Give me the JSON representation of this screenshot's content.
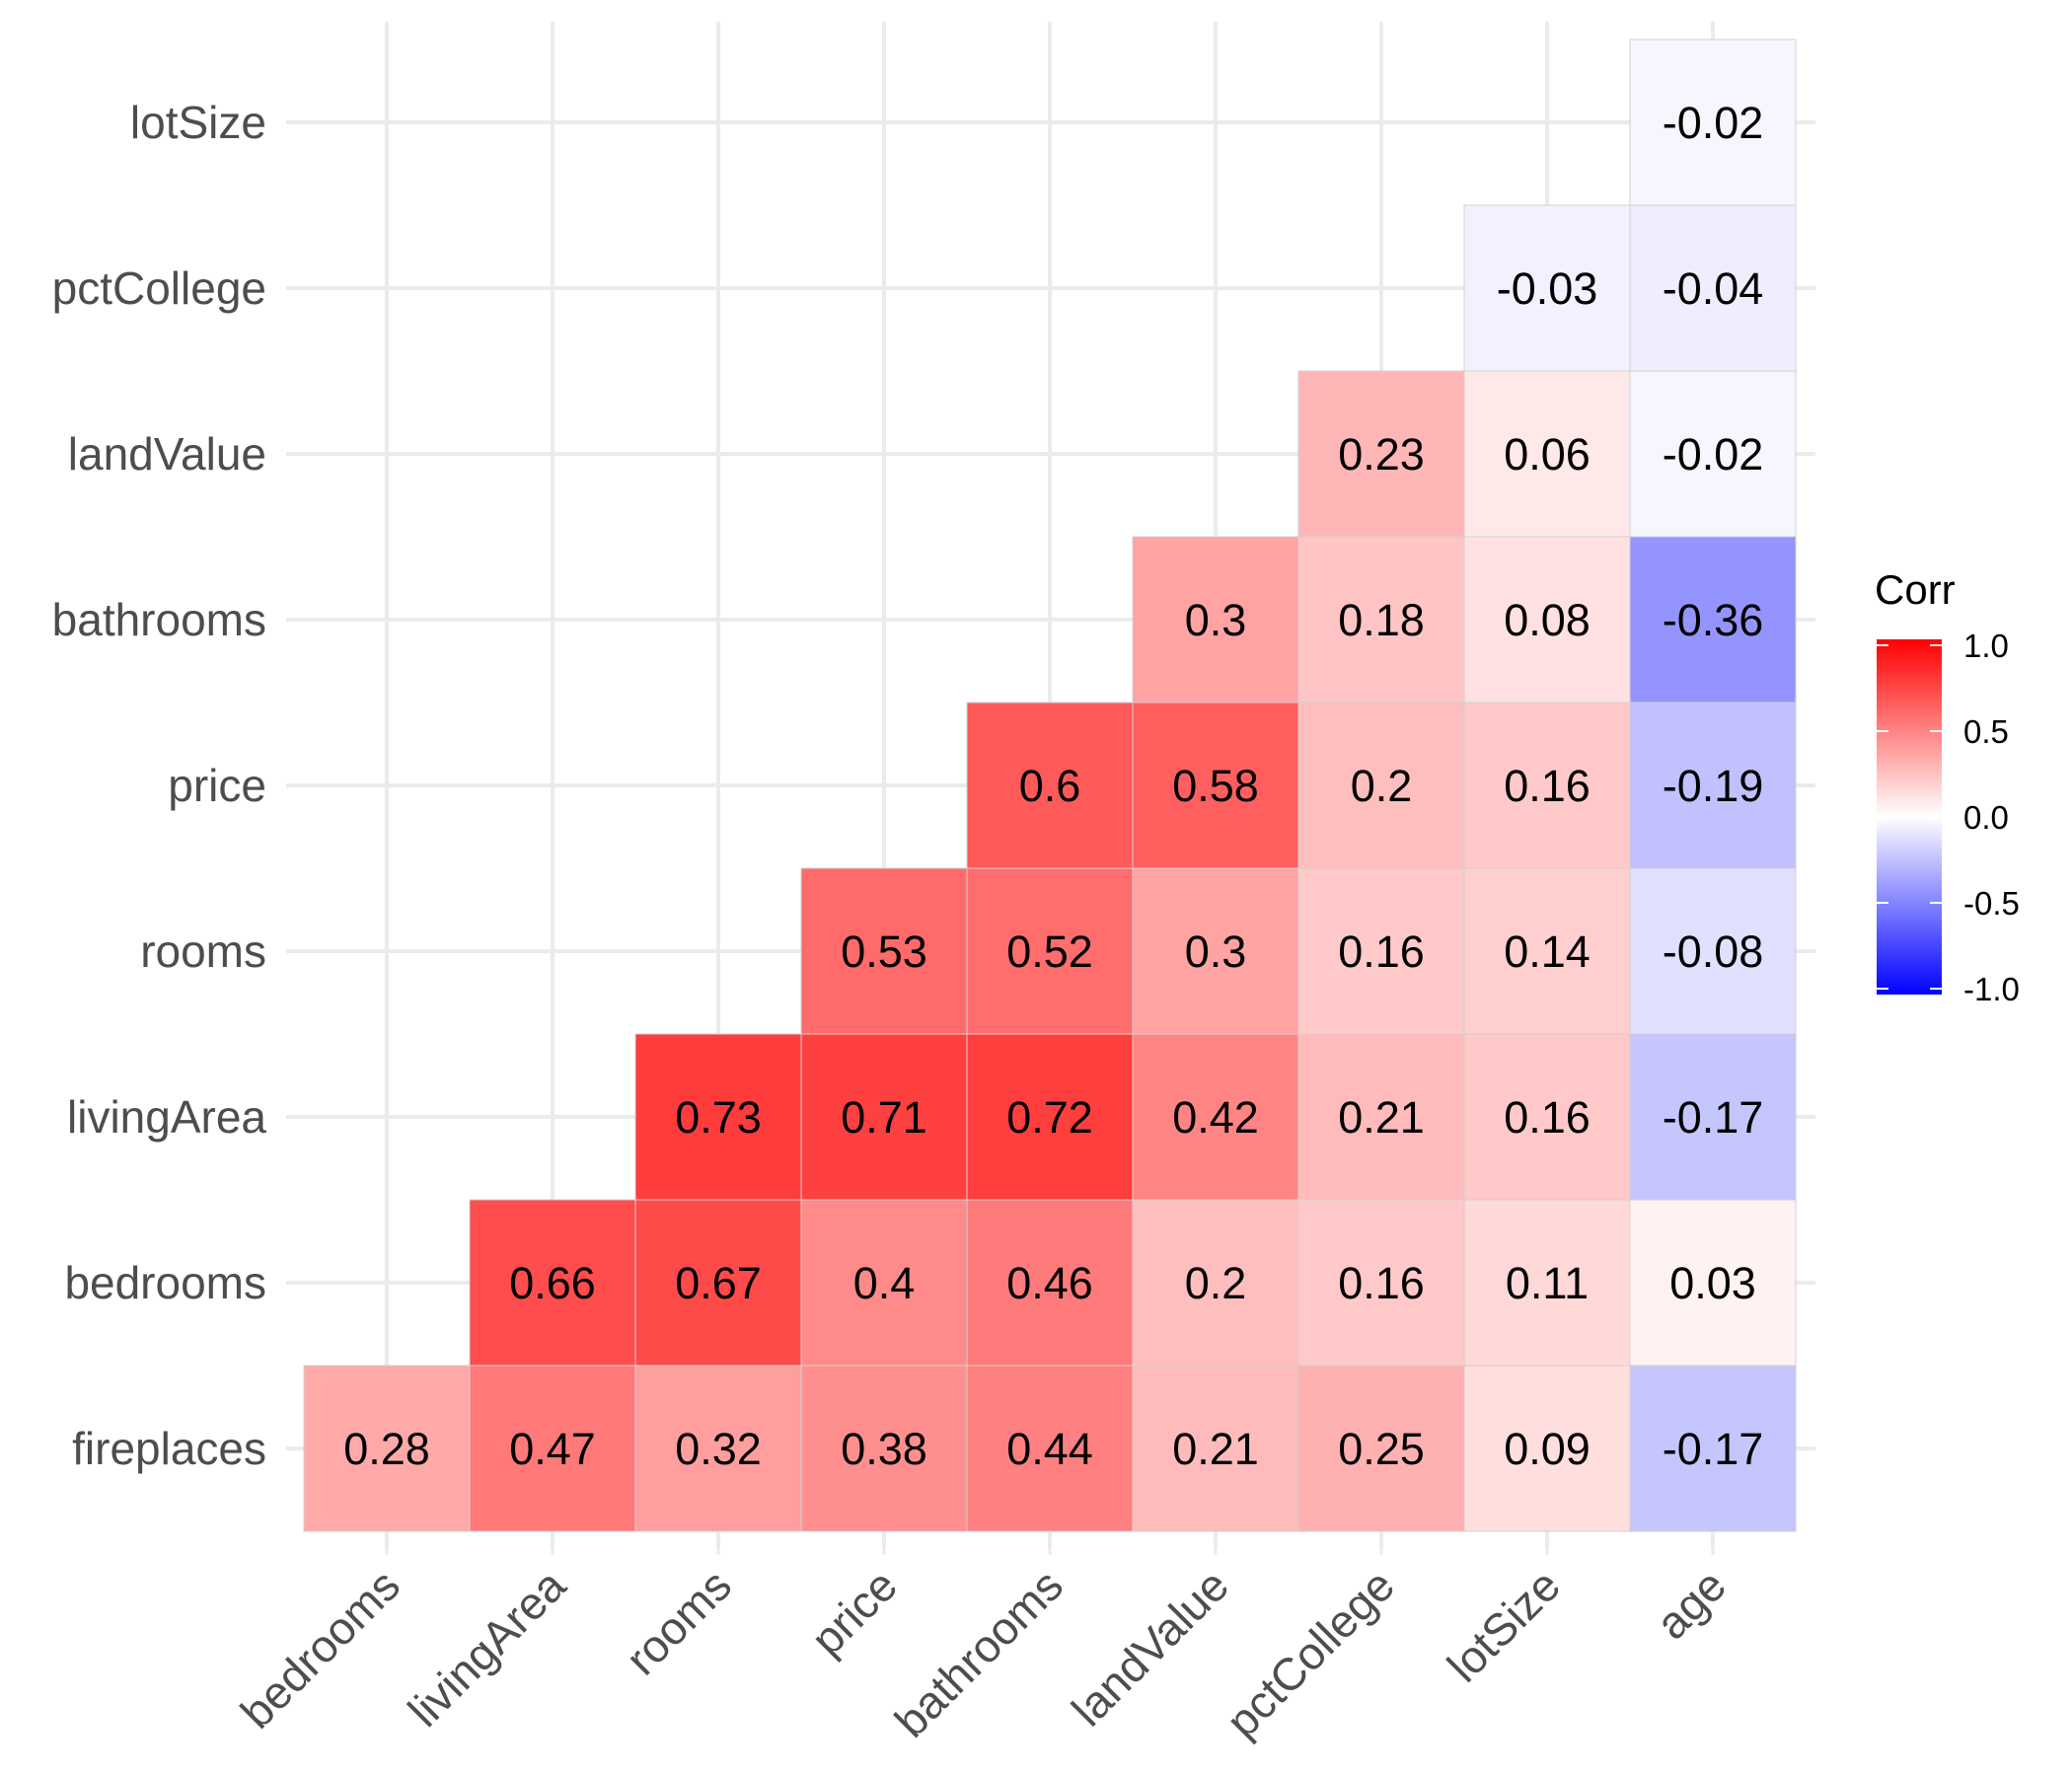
{
  "chart_data": {
    "type": "heatmap",
    "title": "",
    "xlabel": "",
    "ylabel": "",
    "x_categories": [
      "bedrooms",
      "livingArea",
      "rooms",
      "price",
      "bathrooms",
      "landValue",
      "pctCollege",
      "lotSize",
      "age"
    ],
    "y_categories": [
      "fireplaces",
      "bedrooms",
      "livingArea",
      "rooms",
      "price",
      "bathrooms",
      "landValue",
      "pctCollege",
      "lotSize"
    ],
    "cells": [
      {
        "y": "fireplaces",
        "x": "bedrooms",
        "value": 0.28,
        "label": "0.28"
      },
      {
        "y": "fireplaces",
        "x": "livingArea",
        "value": 0.47,
        "label": "0.47"
      },
      {
        "y": "fireplaces",
        "x": "rooms",
        "value": 0.32,
        "label": "0.32"
      },
      {
        "y": "fireplaces",
        "x": "price",
        "value": 0.38,
        "label": "0.38"
      },
      {
        "y": "fireplaces",
        "x": "bathrooms",
        "value": 0.44,
        "label": "0.44"
      },
      {
        "y": "fireplaces",
        "x": "landValue",
        "value": 0.21,
        "label": "0.21"
      },
      {
        "y": "fireplaces",
        "x": "pctCollege",
        "value": 0.25,
        "label": "0.25"
      },
      {
        "y": "fireplaces",
        "x": "lotSize",
        "value": 0.09,
        "label": "0.09"
      },
      {
        "y": "fireplaces",
        "x": "age",
        "value": -0.17,
        "label": "-0.17"
      },
      {
        "y": "bedrooms",
        "x": "livingArea",
        "value": 0.66,
        "label": "0.66"
      },
      {
        "y": "bedrooms",
        "x": "rooms",
        "value": 0.67,
        "label": "0.67"
      },
      {
        "y": "bedrooms",
        "x": "price",
        "value": 0.4,
        "label": "0.4"
      },
      {
        "y": "bedrooms",
        "x": "bathrooms",
        "value": 0.46,
        "label": "0.46"
      },
      {
        "y": "bedrooms",
        "x": "landValue",
        "value": 0.2,
        "label": "0.2"
      },
      {
        "y": "bedrooms",
        "x": "pctCollege",
        "value": 0.16,
        "label": "0.16"
      },
      {
        "y": "bedrooms",
        "x": "lotSize",
        "value": 0.11,
        "label": "0.11"
      },
      {
        "y": "bedrooms",
        "x": "age",
        "value": 0.03,
        "label": "0.03"
      },
      {
        "y": "livingArea",
        "x": "rooms",
        "value": 0.73,
        "label": "0.73"
      },
      {
        "y": "livingArea",
        "x": "price",
        "value": 0.71,
        "label": "0.71"
      },
      {
        "y": "livingArea",
        "x": "bathrooms",
        "value": 0.72,
        "label": "0.72"
      },
      {
        "y": "livingArea",
        "x": "landValue",
        "value": 0.42,
        "label": "0.42"
      },
      {
        "y": "livingArea",
        "x": "pctCollege",
        "value": 0.21,
        "label": "0.21"
      },
      {
        "y": "livingArea",
        "x": "lotSize",
        "value": 0.16,
        "label": "0.16"
      },
      {
        "y": "livingArea",
        "x": "age",
        "value": -0.17,
        "label": "-0.17"
      },
      {
        "y": "rooms",
        "x": "price",
        "value": 0.53,
        "label": "0.53"
      },
      {
        "y": "rooms",
        "x": "bathrooms",
        "value": 0.52,
        "label": "0.52"
      },
      {
        "y": "rooms",
        "x": "landValue",
        "value": 0.3,
        "label": "0.3"
      },
      {
        "y": "rooms",
        "x": "pctCollege",
        "value": 0.16,
        "label": "0.16"
      },
      {
        "y": "rooms",
        "x": "lotSize",
        "value": 0.14,
        "label": "0.14"
      },
      {
        "y": "rooms",
        "x": "age",
        "value": -0.08,
        "label": "-0.08"
      },
      {
        "y": "price",
        "x": "bathrooms",
        "value": 0.6,
        "label": "0.6"
      },
      {
        "y": "price",
        "x": "landValue",
        "value": 0.58,
        "label": "0.58"
      },
      {
        "y": "price",
        "x": "pctCollege",
        "value": 0.2,
        "label": "0.2"
      },
      {
        "y": "price",
        "x": "lotSize",
        "value": 0.16,
        "label": "0.16"
      },
      {
        "y": "price",
        "x": "age",
        "value": -0.19,
        "label": "-0.19"
      },
      {
        "y": "bathrooms",
        "x": "landValue",
        "value": 0.3,
        "label": "0.3"
      },
      {
        "y": "bathrooms",
        "x": "pctCollege",
        "value": 0.18,
        "label": "0.18"
      },
      {
        "y": "bathrooms",
        "x": "lotSize",
        "value": 0.08,
        "label": "0.08"
      },
      {
        "y": "bathrooms",
        "x": "age",
        "value": -0.36,
        "label": "-0.36"
      },
      {
        "y": "landValue",
        "x": "pctCollege",
        "value": 0.23,
        "label": "0.23"
      },
      {
        "y": "landValue",
        "x": "lotSize",
        "value": 0.06,
        "label": "0.06"
      },
      {
        "y": "landValue",
        "x": "age",
        "value": -0.02,
        "label": "-0.02"
      },
      {
        "y": "pctCollege",
        "x": "lotSize",
        "value": -0.03,
        "label": "-0.03"
      },
      {
        "y": "pctCollege",
        "x": "age",
        "value": -0.04,
        "label": "-0.04"
      },
      {
        "y": "lotSize",
        "x": "age",
        "value": -0.02,
        "label": "-0.02"
      }
    ],
    "color_scale": {
      "low": "#0000ff",
      "mid": "#ffffff",
      "high": "#ff0000",
      "limits": [
        -1,
        1
      ]
    },
    "grid": true,
    "legend": {
      "title": "Corr",
      "placement": "right",
      "breaks": [
        1.0,
        0.5,
        0.0,
        -0.5,
        -1.0
      ],
      "labels": [
        "1.0",
        "0.5",
        "0.0",
        "-0.5",
        "-1.0"
      ]
    }
  }
}
